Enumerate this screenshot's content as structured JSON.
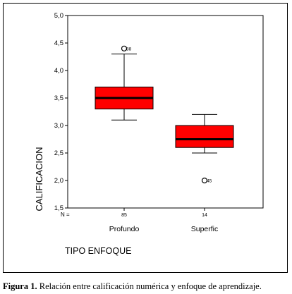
{
  "chart_data": {
    "type": "boxplot",
    "ylabel": "CALIFICACION",
    "xlabel": "TIPO ENFOQUE",
    "ylim": [
      1.5,
      5.0
    ],
    "yticks": [
      "1,5",
      "2,0",
      "2,5",
      "3,0",
      "3,5",
      "4,0",
      "4,5",
      "5,0"
    ],
    "n_label": "N =",
    "box_color": "#ff0000",
    "boxes": [
      {
        "category": "Profundo",
        "n": "85",
        "min": 3.1,
        "q1": 3.3,
        "median": 3.5,
        "q3": 3.7,
        "max": 4.3,
        "outliers": [
          {
            "value": 4.4,
            "label": "88"
          }
        ]
      },
      {
        "category": "Superfic",
        "n": "14",
        "min": 2.5,
        "q1": 2.6,
        "median": 2.75,
        "q3": 3.0,
        "max": 3.2,
        "outliers": [
          {
            "value": 2.0,
            "label": "45"
          }
        ]
      }
    ]
  },
  "caption": {
    "label": "Figura 1.",
    "text": " Relación entre calificación numérica y enfoque de aprendizaje."
  }
}
